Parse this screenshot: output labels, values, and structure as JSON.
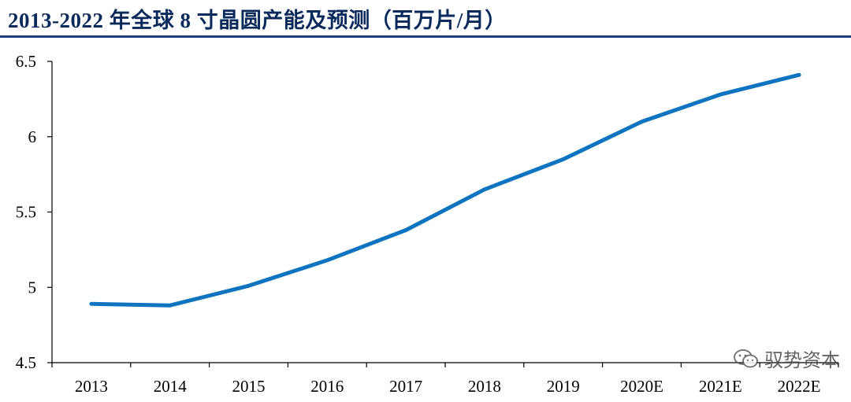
{
  "chart_data": {
    "type": "line",
    "title": "2013-2022 年全球 8 寸晶圆产能及预测（百万片/月）",
    "categories": [
      "2013",
      "2014",
      "2015",
      "2016",
      "2017",
      "2018",
      "2019",
      "2020E",
      "2021E",
      "2022E"
    ],
    "series": [
      {
        "name": "全球8寸晶圆产能",
        "values": [
          4.89,
          4.88,
          5.01,
          5.18,
          5.38,
          5.65,
          5.85,
          6.1,
          6.28,
          6.41
        ]
      }
    ],
    "ylim": [
      4.5,
      6.5
    ],
    "yticks": [
      "4.5",
      "5",
      "5.5",
      "6",
      "6.5"
    ],
    "xlabel": "",
    "ylabel": "",
    "grid": false,
    "line_color": "#0f74c0"
  },
  "watermark": {
    "text": "驭势资本",
    "icon": "wechat-icon"
  }
}
